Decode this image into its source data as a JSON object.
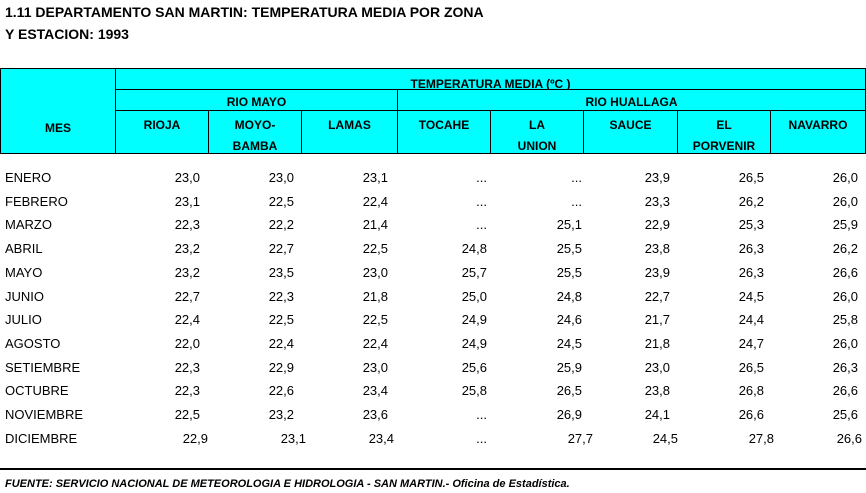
{
  "title_line1": "1.11  DEPARTAMENTO SAN MARTIN: TEMPERATURA MEDIA POR ZONA",
  "title_line2": "Y ESTACION: 1993",
  "header": {
    "mes": "MES",
    "group": "TEMPERATURA  MEDIA   (ºC )",
    "zone1": "RIO MAYO",
    "zone2": "RIO HUALLAGA",
    "stations": [
      {
        "l1": "RIOJA",
        "l2": ""
      },
      {
        "l1": "MOYO-",
        "l2": "BAMBA"
      },
      {
        "l1": "LAMAS",
        "l2": ""
      },
      {
        "l1": "TOCAHE",
        "l2": ""
      },
      {
        "l1": "LA",
        "l2": "UNION"
      },
      {
        "l1": "SAUCE",
        "l2": ""
      },
      {
        "l1": "EL",
        "l2": "PORVENIR"
      },
      {
        "l1": "NAVARRO",
        "l2": ""
      }
    ]
  },
  "rows": [
    {
      "mes": "ENERO",
      "v": [
        "23,0",
        "23,0",
        "23,1",
        "...",
        "...",
        "23,9",
        "26,5",
        "26,0"
      ]
    },
    {
      "mes": "FEBRERO",
      "v": [
        "23,1",
        "22,5",
        "22,4",
        "...",
        "...",
        "23,3",
        "26,2",
        "26,0"
      ]
    },
    {
      "mes": "MARZO",
      "v": [
        "22,3",
        "22,2",
        "21,4",
        "...",
        "25,1",
        "22,9",
        "25,3",
        "25,9"
      ]
    },
    {
      "mes": "ABRIL",
      "v": [
        "23,2",
        "22,7",
        "22,5",
        "24,8",
        "25,5",
        "23,8",
        "26,3",
        "26,2"
      ]
    },
    {
      "mes": "MAYO",
      "v": [
        "23,2",
        "23,5",
        "23,0",
        "25,7",
        "25,5",
        "23,9",
        "26,3",
        "26,6"
      ]
    },
    {
      "mes": "JUNIO",
      "v": [
        "22,7",
        "22,3",
        "21,8",
        "25,0",
        "24,8",
        "22,7",
        "24,5",
        "26,0"
      ]
    },
    {
      "mes": "JULIO",
      "v": [
        "22,4",
        "22,5",
        "22,5",
        "24,9",
        "24,6",
        "21,7",
        "24,4",
        "25,8"
      ]
    },
    {
      "mes": "AGOSTO",
      "v": [
        "22,0",
        "22,4",
        "22,4",
        "24,9",
        "24,5",
        "21,8",
        "24,7",
        "26,0"
      ]
    },
    {
      "mes": "SETIEMBRE",
      "v": [
        "22,3",
        "22,9",
        "23,0",
        "25,6",
        "25,9",
        "23,0",
        "26,5",
        "26,3"
      ]
    },
    {
      "mes": "OCTUBRE",
      "v": [
        "22,3",
        "22,6",
        "23,4",
        "25,8",
        "26,5",
        "23,8",
        "26,8",
        "26,6"
      ]
    },
    {
      "mes": "NOVIEMBRE",
      "v": [
        "22,5",
        "23,2",
        "23,6",
        "...",
        "26,9",
        "24,1",
        "26,6",
        "25,6"
      ]
    },
    {
      "mes": "DICIEMBRE",
      "v": [
        "22,9",
        "23,1",
        "23,4",
        "...",
        "27,7",
        "24,5",
        "27,8",
        "26,6"
      ]
    }
  ],
  "footer": "FUENTE: SERVICIO NACIONAL DE METEOROLOGIA E HIDROLOGIA - SAN MARTIN.- Oficina de Estadística."
}
